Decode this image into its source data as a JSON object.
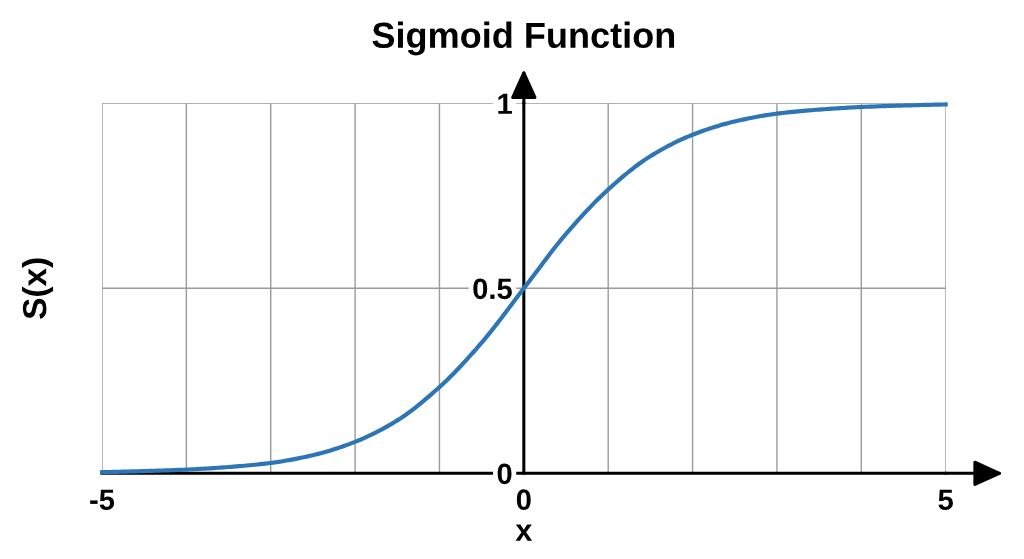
{
  "chart_data": {
    "type": "line",
    "title": "Sigmoid Function",
    "xlabel": "x",
    "ylabel": "S(x)",
    "x": [
      -5,
      -4.5,
      -4,
      -3.5,
      -3,
      -2.5,
      -2,
      -1.5,
      -1,
      -0.5,
      0,
      0.5,
      1,
      1.5,
      2,
      2.5,
      3,
      3.5,
      4,
      4.5,
      5
    ],
    "series": [
      {
        "color": "#2e75b6",
        "values": [
          0.003,
          0.006,
          0.01,
          0.017,
          0.028,
          0.049,
          0.085,
          0.143,
          0.233,
          0.353,
          0.5,
          0.647,
          0.767,
          0.857,
          0.915,
          0.951,
          0.972,
          0.983,
          0.99,
          0.994,
          0.997
        ]
      }
    ],
    "xlim": [
      -5,
      5
    ],
    "ylim": [
      0,
      1
    ],
    "xticks": [
      -5,
      {
        "value": -4,
        "label": null
      },
      {
        "value": -3,
        "label": null
      },
      {
        "value": -2,
        "label": null
      },
      {
        "value": -1,
        "label": null
      },
      0,
      {
        "value": 1,
        "label": null
      },
      {
        "value": 2,
        "label": null
      },
      {
        "value": 3,
        "label": null
      },
      {
        "value": 4,
        "label": null
      },
      5
    ],
    "yticks": [
      0,
      0.5,
      1
    ],
    "grid": true,
    "line_style": "solid"
  }
}
